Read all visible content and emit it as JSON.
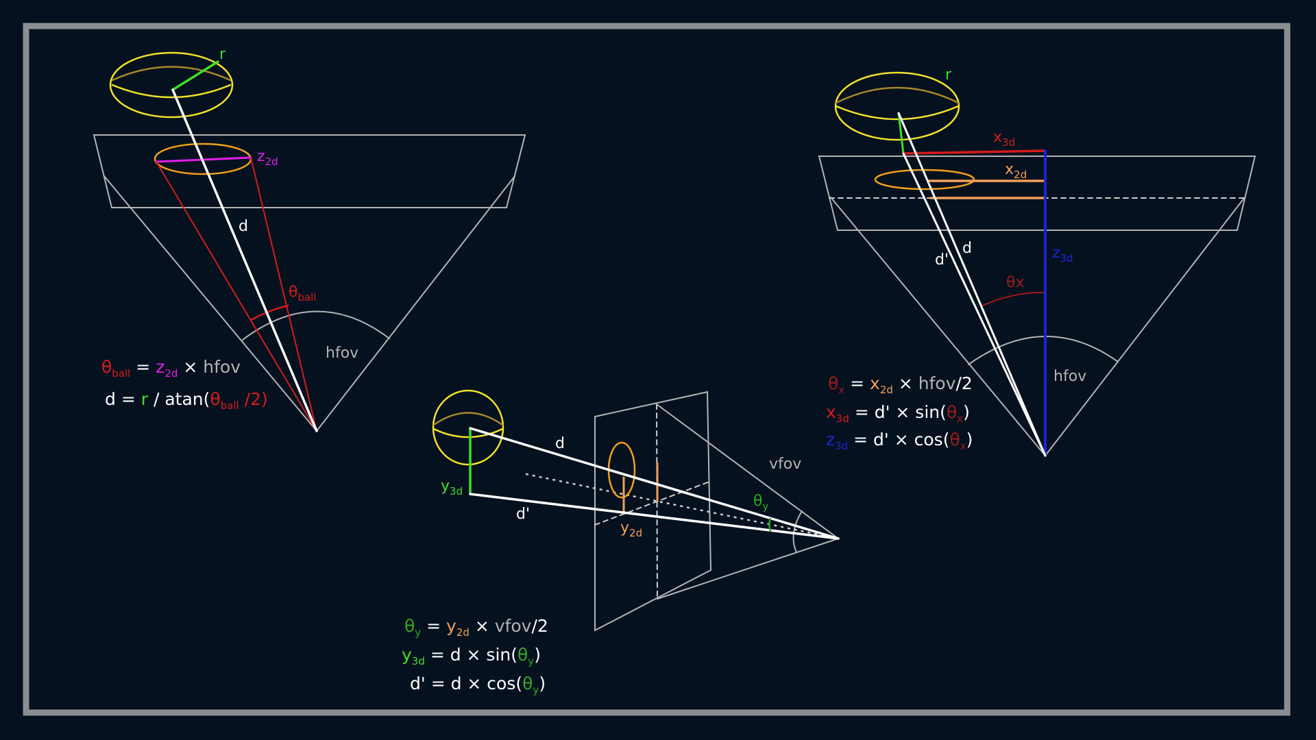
{
  "colors": {
    "background": "#06111f",
    "frame": "#8a8d91",
    "white": "#ffffff",
    "gray": "#b4b4b4",
    "yellow": "#f2e22a",
    "dark_yellow": "#a8892a",
    "orange": "#f4a05a",
    "red": "#d41c1c",
    "green": "#3ee029",
    "dark_green": "#2fa822",
    "magenta": "#e21fe8",
    "blue": "#1a25d6"
  },
  "symbols": {
    "theta": "θ",
    "x": "x",
    "y": "y",
    "z": "z",
    "r": "r",
    "d": "d",
    "d_prime": "d'",
    "hfov": "hfov",
    "vfov": "vfov",
    "sub_ball": "ball",
    "sub_2d": "2d",
    "sub_3d": "3d",
    "sub_x": "x",
    "sub_y": "y",
    "theta_x_label": "θx"
  },
  "equations": {
    "left_eq1": {
      "equals": " = ",
      "times": " × "
    },
    "left_eq2": {
      "lhs": "d = ",
      "slash": " / atan(",
      "tail": " /2)"
    },
    "right_eq1": {
      "equals": " = ",
      "times": " × ",
      "tail": "/2"
    },
    "right_eq2": {
      "equals": " = d' × sin(",
      "close": ")"
    },
    "right_eq3": {
      "equals": " = d' × cos(",
      "close": ")"
    },
    "bottom_eq1": {
      "equals": " = ",
      "times": " × ",
      "tail": "/2"
    },
    "bottom_eq2": {
      "equals": " = d × sin(",
      "close": ")"
    },
    "bottom_eq3": {
      "lhs": "d' = d × cos(",
      "close": ")"
    }
  }
}
